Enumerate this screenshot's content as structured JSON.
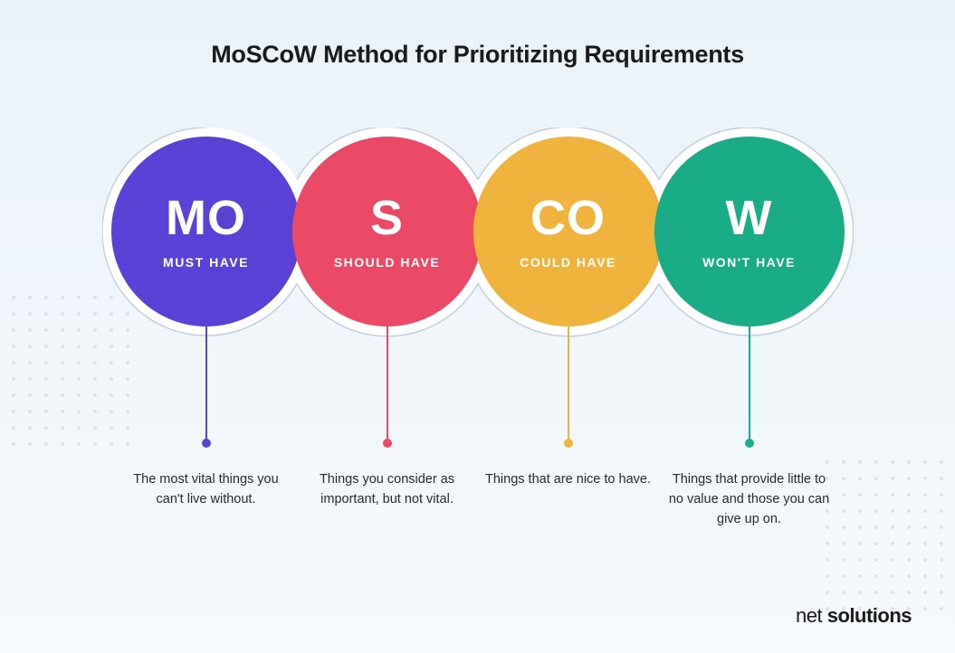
{
  "title": "MoSCoW Method for Prioritizing Requirements",
  "background_color": "#eaf2f8",
  "circle_diameter": 210,
  "circle_overlap": 10,
  "outline_stroke": "#c2d1dd",
  "outline_fill": "#ffffff",
  "connector_height": 140,
  "title_fontsize": 27,
  "circle_letter_fontsize": 54,
  "circle_label_fontsize": 14,
  "desc_fontsize": 14.5,
  "text_color": "#1a1a1a",
  "desc_text_color": "#2a2a2a",
  "items": [
    {
      "letter": "MO",
      "label": "MUST HAVE",
      "color": "#5b42d6",
      "description": "The most vital things you can't live without."
    },
    {
      "letter": "S",
      "label": "SHOULD HAVE",
      "color": "#ea4a66",
      "description": "Things you consider as important, but not vital."
    },
    {
      "letter": "CO",
      "label": "COULD HAVE",
      "color": "#f0b43e",
      "description": "Things that are nice to have."
    },
    {
      "letter": "W",
      "label": "WON'T HAVE",
      "color": "#1aac87",
      "description": "Things that provide little to no value and those you can give up on."
    }
  ],
  "footer": {
    "part1": "net",
    "part2": " solutions"
  }
}
